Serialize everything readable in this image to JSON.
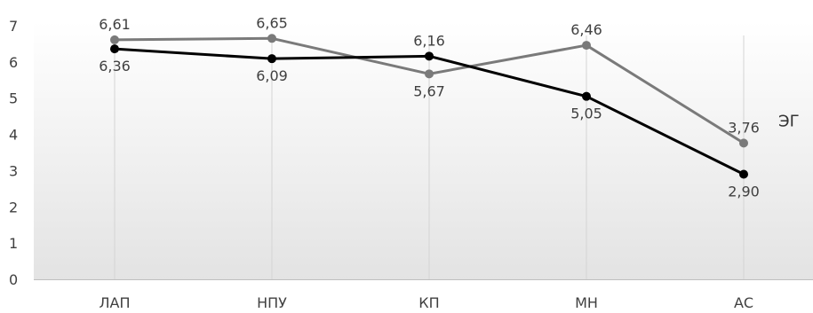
{
  "chart_data": {
    "type": "line",
    "title": "",
    "xlabel": "",
    "ylabel": "",
    "categories": [
      "ЛАП",
      "НПУ",
      "КП",
      "МН",
      "АС"
    ],
    "ylim": [
      0,
      7
    ],
    "yticks": [
      "0",
      "1",
      "2",
      "3",
      "4",
      "5",
      "6",
      "7"
    ],
    "grid": "vertical",
    "series": [
      {
        "name": "ЭГ",
        "color": "#7a7a7a",
        "values": [
          6.61,
          6.65,
          5.67,
          6.46,
          3.76
        ],
        "labels": [
          "6,61",
          "6,65",
          "5,67",
          "6,46",
          "3,76"
        ]
      },
      {
        "color": "#000000",
        "values": [
          6.36,
          6.09,
          6.16,
          5.05,
          2.9
        ],
        "labels": [
          "6,36",
          "6,09",
          "6,16",
          "5,05",
          "2,90"
        ]
      }
    ]
  }
}
